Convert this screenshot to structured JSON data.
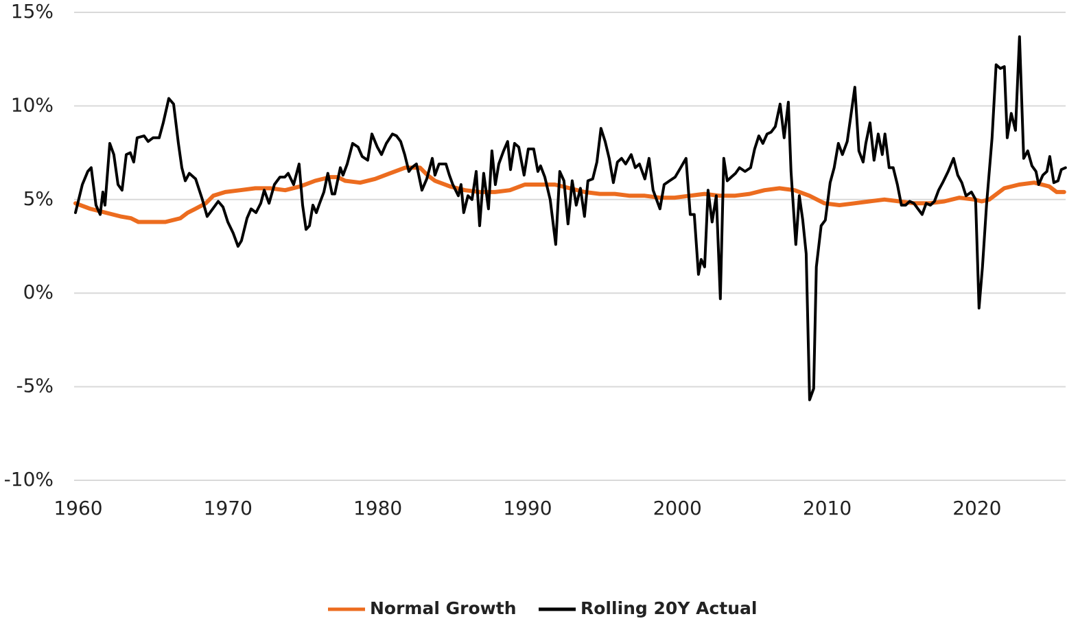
{
  "chart_data": {
    "type": "line",
    "xlim": [
      1960,
      2026.1
    ],
    "xticks": [
      1960,
      1970,
      1980,
      1990,
      2000,
      2010,
      2020
    ],
    "ylim": [
      -10,
      15
    ],
    "yticks": [
      {
        "value": -10,
        "label": "-10%"
      },
      {
        "value": -5,
        "label": "-5%"
      },
      {
        "value": 0,
        "label": "0%"
      },
      {
        "value": 5,
        "label": "5%"
      },
      {
        "value": 10,
        "label": "10%"
      },
      {
        "value": 15,
        "label": "15%"
      }
    ],
    "grid": true,
    "legend": "bottom",
    "series": [
      {
        "name": "Normal Growth",
        "color": "#ec6c1f",
        "x": [
          1960,
          1961,
          1962,
          1963,
          1963.7,
          1964.2,
          1965,
          1966,
          1967,
          1967.5,
          1968,
          1968.7,
          1969.2,
          1970,
          1971,
          1972,
          1973,
          1974,
          1975,
          1976,
          1977,
          1977.5,
          1978,
          1979,
          1980,
          1981,
          1982,
          1983,
          1983.5,
          1984,
          1985,
          1986,
          1987,
          1988,
          1989,
          1990,
          1991,
          1992,
          1993,
          1994,
          1995,
          1996,
          1997,
          1998,
          1999,
          2000,
          2001,
          2002,
          2003,
          2004,
          2005,
          2006,
          2007,
          2008,
          2009,
          2010,
          2011,
          2012,
          2013,
          2014,
          2015,
          2016,
          2017,
          2018,
          2019,
          2020,
          2020.5,
          2021,
          2021.5,
          2022,
          2023,
          2024,
          2025,
          2025.5,
          2026
        ],
        "values": [
          4.8,
          4.5,
          4.3,
          4.1,
          4.0,
          3.8,
          3.8,
          3.8,
          4.0,
          4.3,
          4.5,
          4.8,
          5.2,
          5.4,
          5.5,
          5.6,
          5.6,
          5.5,
          5.7,
          6.0,
          6.2,
          6.2,
          6.0,
          5.9,
          6.1,
          6.4,
          6.7,
          6.7,
          6.3,
          6.0,
          5.7,
          5.5,
          5.4,
          5.4,
          5.5,
          5.8,
          5.8,
          5.8,
          5.6,
          5.4,
          5.3,
          5.3,
          5.2,
          5.2,
          5.1,
          5.1,
          5.2,
          5.3,
          5.2,
          5.2,
          5.3,
          5.5,
          5.6,
          5.5,
          5.2,
          4.8,
          4.7,
          4.8,
          4.9,
          5.0,
          4.9,
          4.8,
          4.8,
          4.9,
          5.1,
          5.0,
          4.9,
          5.0,
          5.3,
          5.6,
          5.8,
          5.9,
          5.7,
          5.4,
          5.4
        ]
      },
      {
        "name": "Rolling 20Y Actual",
        "color": "#000000",
        "x": [
          1960.0,
          1960.46,
          1960.82,
          1961.05,
          1961.37,
          1961.65,
          1961.83,
          1961.97,
          1962.29,
          1962.56,
          1962.84,
          1963.11,
          1963.39,
          1963.66,
          1963.89,
          1964.12,
          1964.58,
          1964.85,
          1965.18,
          1965.59,
          1965.86,
          1966.23,
          1966.55,
          1966.87,
          1967.1,
          1967.33,
          1967.6,
          1968.02,
          1968.47,
          1968.79,
          1969.16,
          1969.53,
          1969.85,
          1970.17,
          1970.53,
          1970.85,
          1971.08,
          1971.45,
          1971.72,
          1972.05,
          1972.37,
          1972.6,
          1972.92,
          1973.28,
          1973.65,
          1973.97,
          1974.2,
          1974.56,
          1974.93,
          1975.16,
          1975.39,
          1975.62,
          1975.85,
          1976.08,
          1976.3,
          1976.58,
          1976.85,
          1977.13,
          1977.31,
          1977.68,
          1977.86,
          1978.14,
          1978.5,
          1978.87,
          1979.14,
          1979.51,
          1979.79,
          1980.15,
          1980.43,
          1980.75,
          1981.16,
          1981.43,
          1981.71,
          1981.98,
          1982.26,
          1982.44,
          1982.76,
          1983.13,
          1983.45,
          1983.82,
          1984.0,
          1984.27,
          1984.73,
          1984.96,
          1985.19,
          1985.56,
          1985.74,
          1985.92,
          1986.2,
          1986.47,
          1986.75,
          1986.98,
          1987.25,
          1987.57,
          1987.8,
          1988.03,
          1988.26,
          1988.58,
          1988.85,
          1989.04,
          1989.31,
          1989.59,
          1989.95,
          1990.23,
          1990.59,
          1990.87,
          1991.05,
          1991.33,
          1991.69,
          1992.06,
          1992.33,
          1992.61,
          1992.88,
          1993.16,
          1993.43,
          1993.71,
          1993.98,
          1994.21,
          1994.53,
          1994.81,
          1995.08,
          1995.36,
          1995.63,
          1995.91,
          1996.18,
          1996.46,
          1996.73,
          1997.1,
          1997.37,
          1997.65,
          1998.01,
          1998.29,
          1998.56,
          1999.02,
          1999.3,
          1999.66,
          2000.03,
          2000.4,
          2000.76,
          2001.04,
          2001.31,
          2001.59,
          2001.77,
          2002.0,
          2002.23,
          2002.5,
          2002.78,
          2003.05,
          2003.28,
          2003.51,
          2003.78,
          2004.06,
          2004.33,
          2004.7,
          2005.07,
          2005.34,
          2005.62,
          2005.89,
          2006.17,
          2006.44,
          2006.72,
          2007.04,
          2007.31,
          2007.59,
          2007.77,
          2008.09,
          2008.32,
          2008.55,
          2008.78,
          2009.01,
          2009.28,
          2009.46,
          2009.78,
          2010.06,
          2010.38,
          2010.65,
          2010.93,
          2011.2,
          2011.52,
          2011.75,
          2012.03,
          2012.3,
          2012.58,
          2012.76,
          2013.04,
          2013.31,
          2013.59,
          2013.86,
          2014.04,
          2014.32,
          2014.59,
          2014.87,
          2015.14,
          2015.42,
          2015.69,
          2015.97,
          2016.24,
          2016.52,
          2016.79,
          2017.07,
          2017.34,
          2017.62,
          2017.89,
          2018.26,
          2018.62,
          2018.9,
          2019.17,
          2019.45,
          2019.81,
          2020.09,
          2020.32,
          2020.55,
          2020.82,
          2021.19,
          2021.46,
          2021.74,
          2022.01,
          2022.2,
          2022.47,
          2022.75,
          2023.02,
          2023.3,
          2023.57,
          2023.85,
          2024.12,
          2024.3,
          2024.58,
          2024.85,
          2025.04,
          2025.31,
          2025.59,
          2025.81,
          2026.09
        ],
        "values": [
          4.3,
          5.8,
          6.5,
          6.7,
          4.7,
          4.2,
          5.4,
          4.7,
          8.0,
          7.4,
          5.8,
          5.5,
          7.4,
          7.5,
          7.0,
          8.3,
          8.4,
          8.1,
          8.3,
          8.3,
          9.1,
          10.4,
          10.1,
          8.0,
          6.7,
          6.0,
          6.4,
          6.1,
          5.0,
          4.1,
          4.5,
          4.9,
          4.6,
          3.8,
          3.2,
          2.5,
          2.8,
          4.0,
          4.5,
          4.3,
          4.8,
          5.5,
          4.8,
          5.8,
          6.2,
          6.2,
          6.4,
          5.8,
          6.9,
          4.7,
          3.4,
          3.6,
          4.7,
          4.3,
          4.8,
          5.4,
          6.4,
          5.3,
          5.3,
          6.7,
          6.3,
          6.9,
          8.0,
          7.8,
          7.3,
          7.1,
          8.5,
          7.8,
          7.4,
          8.0,
          8.5,
          8.4,
          8.1,
          7.4,
          6.5,
          6.7,
          6.9,
          5.5,
          6.1,
          7.2,
          6.3,
          6.9,
          6.9,
          6.3,
          5.8,
          5.2,
          5.8,
          4.3,
          5.2,
          5.0,
          6.5,
          3.6,
          6.4,
          4.5,
          7.6,
          5.8,
          6.9,
          7.6,
          8.1,
          6.6,
          8.0,
          7.8,
          6.3,
          7.7,
          7.7,
          6.5,
          6.8,
          6.2,
          5.0,
          2.6,
          6.5,
          6.0,
          3.7,
          6.0,
          4.7,
          5.6,
          4.1,
          6.0,
          6.1,
          7.0,
          8.8,
          8.1,
          7.2,
          5.9,
          7.0,
          7.2,
          6.9,
          7.4,
          6.7,
          6.9,
          6.1,
          7.2,
          5.5,
          4.5,
          5.8,
          6.0,
          6.2,
          6.7,
          7.2,
          4.2,
          4.2,
          1.0,
          1.8,
          1.4,
          5.5,
          3.8,
          5.2,
          -0.3,
          7.2,
          6.0,
          6.2,
          6.4,
          6.7,
          6.5,
          6.7,
          7.7,
          8.4,
          8.0,
          8.5,
          8.6,
          8.9,
          10.1,
          8.3,
          10.2,
          6.5,
          2.6,
          5.2,
          3.9,
          2.1,
          -5.7,
          -5.1,
          1.4,
          3.6,
          3.9,
          5.9,
          6.7,
          8.0,
          7.4,
          8.1,
          9.4,
          11.0,
          7.6,
          7.0,
          8.0,
          9.1,
          7.1,
          8.5,
          7.4,
          8.5,
          6.7,
          6.7,
          5.8,
          4.7,
          4.7,
          4.9,
          4.8,
          4.5,
          4.2,
          4.8,
          4.7,
          4.9,
          5.5,
          5.9,
          6.5,
          7.2,
          6.3,
          5.9,
          5.2,
          5.4,
          5.0,
          -0.8,
          1.4,
          4.7,
          8.3,
          12.2,
          12.0,
          12.1,
          8.3,
          9.6,
          8.7,
          13.7,
          7.2,
          7.6,
          6.8,
          6.5,
          5.8,
          6.3,
          6.5,
          7.3,
          5.9,
          6.0,
          6.6,
          6.7
        ]
      }
    ]
  }
}
